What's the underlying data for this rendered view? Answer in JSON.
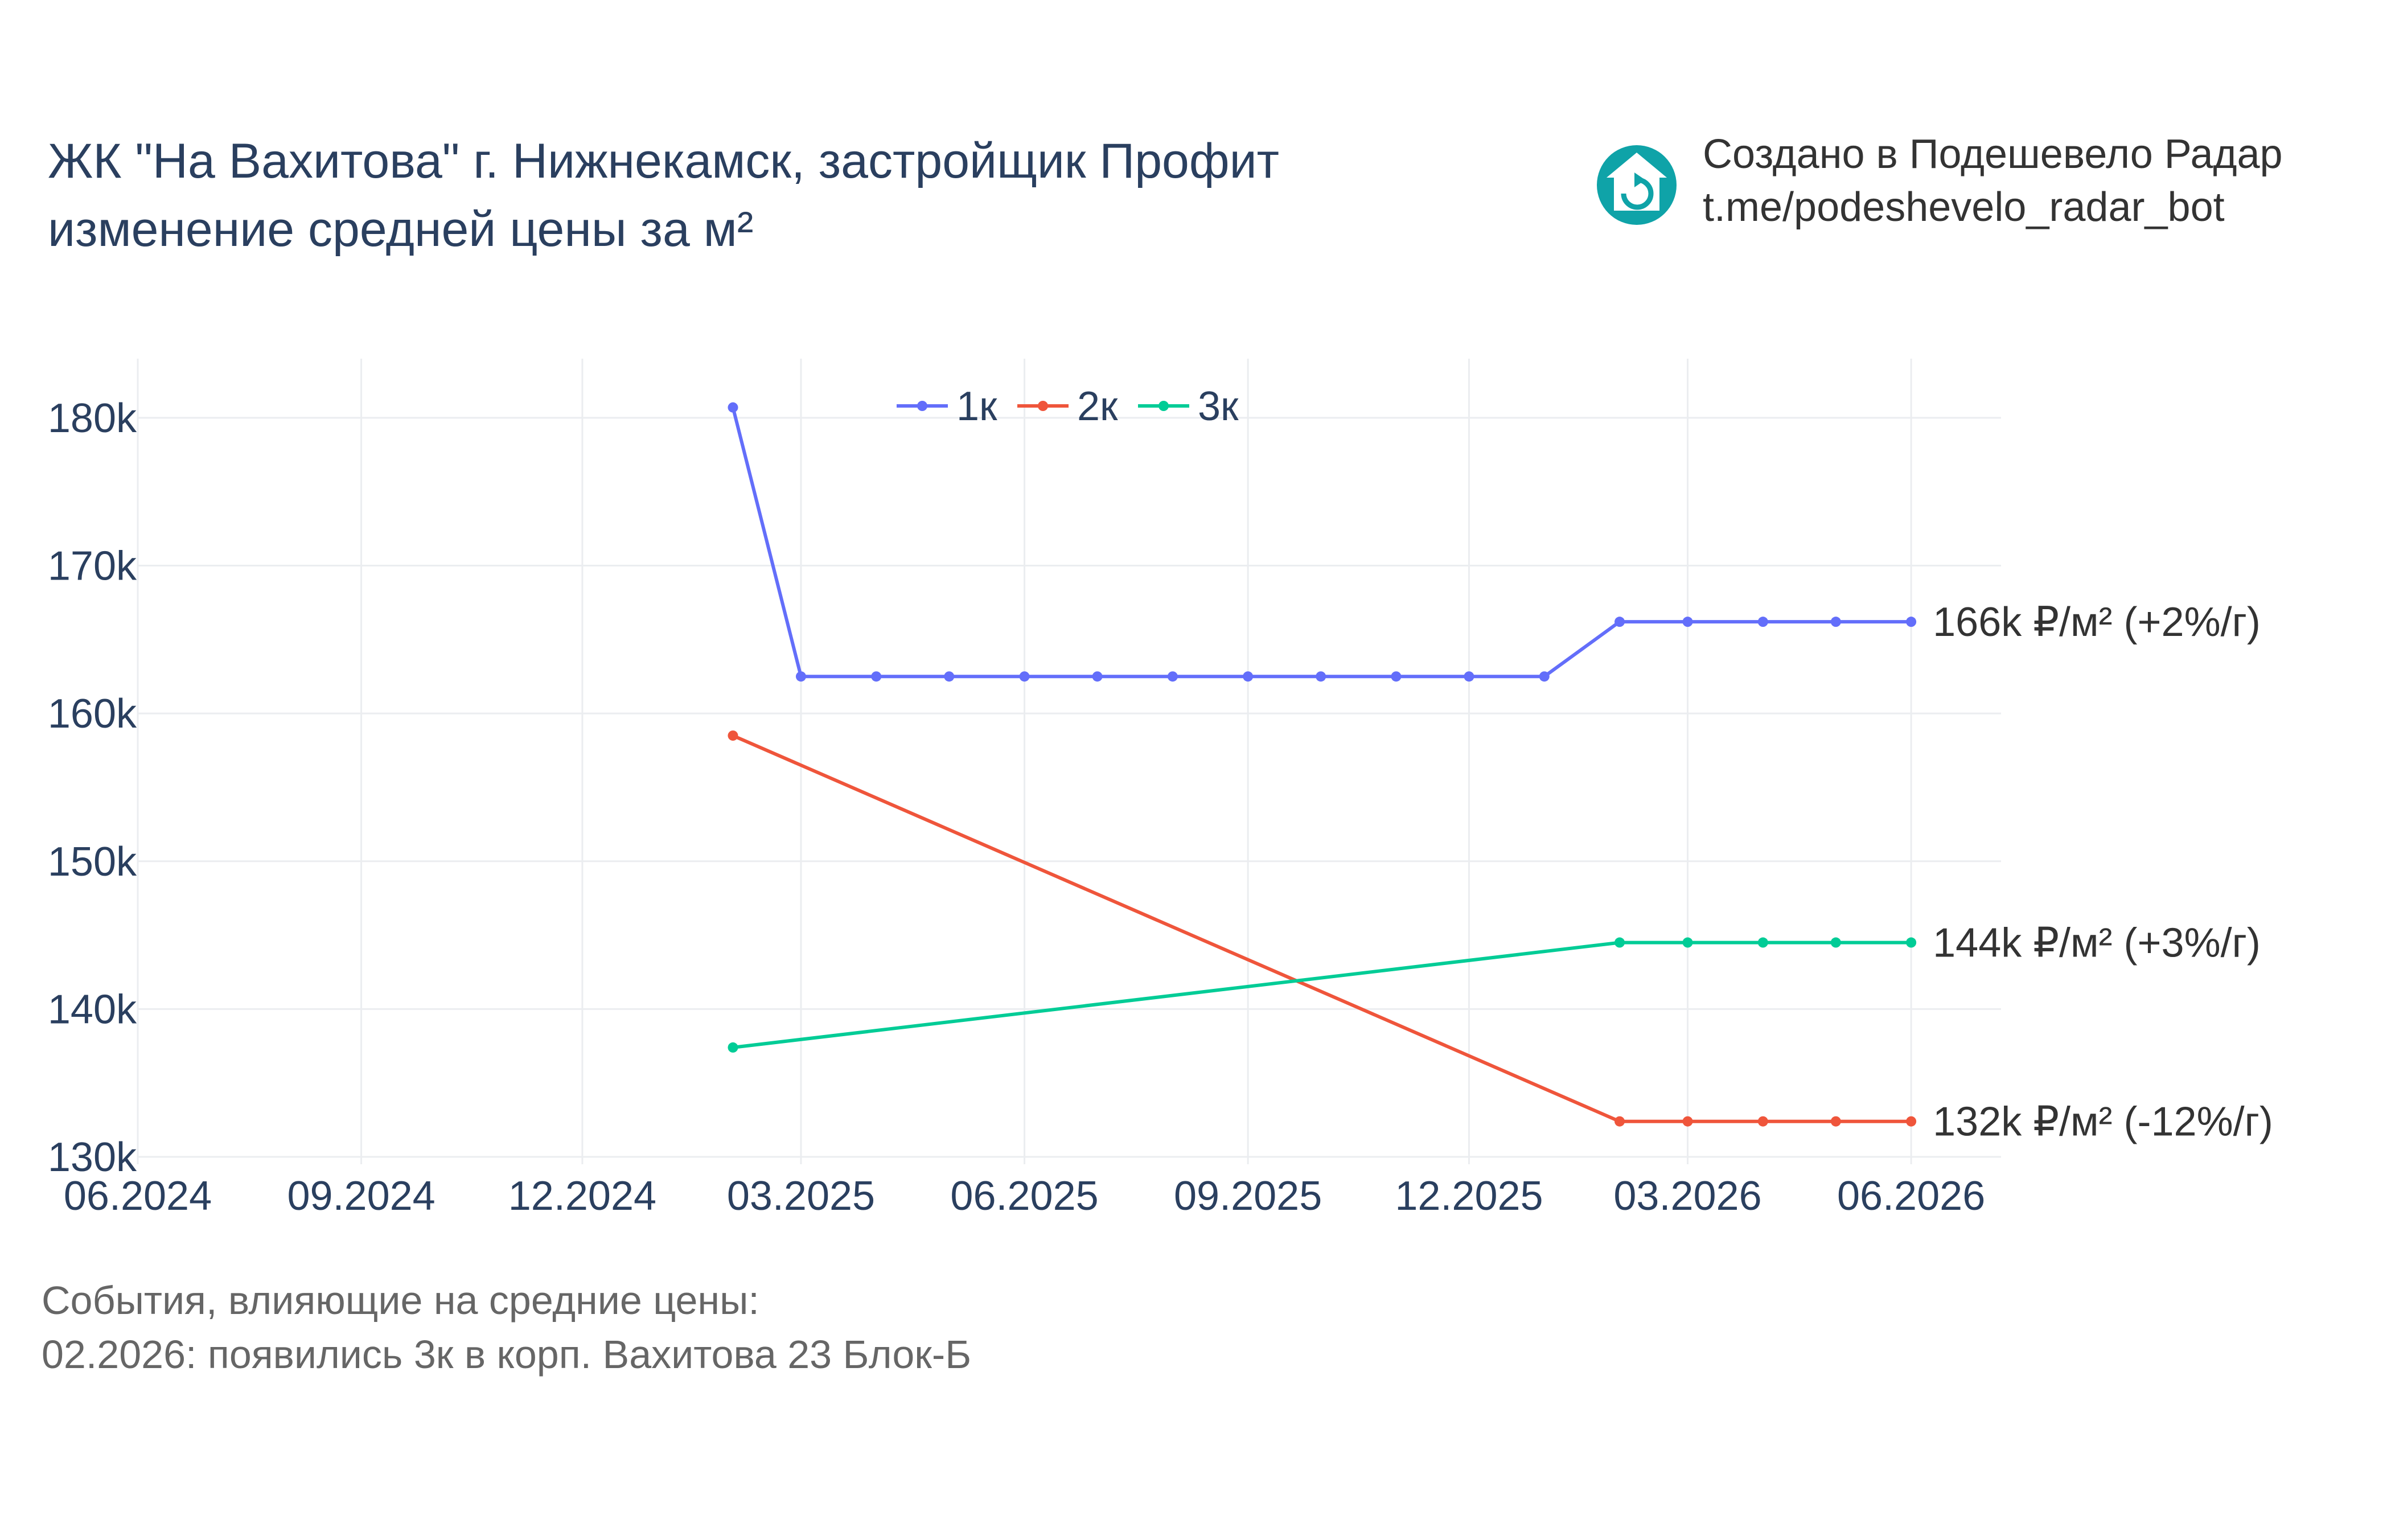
{
  "header": {
    "title_line1": "ЖК \"На Вахитова\" г. Нижнекамск, застройщик Профит",
    "title_line2": "изменение средней цены за м²"
  },
  "credit": {
    "line1": "Создано в Подешевело Радар",
    "line2": "t.me/podeshevelo_radar_bot",
    "logo_icon": "house-refresh-icon",
    "logo_color": "#0fa3a8"
  },
  "events": {
    "heading": "События, влияющие на средние цены:",
    "items": [
      "02.2026: появились 3к в корп. Вахитова 23 Блок-Б"
    ]
  },
  "chart_data": {
    "type": "line",
    "title": "",
    "xlabel": "",
    "ylabel": "",
    "x_axis": {
      "type": "date",
      "range": [
        "2024-06-01",
        "2026-07-08"
      ],
      "ticks": [
        {
          "date": "2024-06-01",
          "label": "06.2024"
        },
        {
          "date": "2024-09-01",
          "label": "09.2024"
        },
        {
          "date": "2024-12-01",
          "label": "12.2024"
        },
        {
          "date": "2025-03-01",
          "label": "03.2025"
        },
        {
          "date": "2025-06-01",
          "label": "06.2025"
        },
        {
          "date": "2025-09-01",
          "label": "09.2025"
        },
        {
          "date": "2025-12-01",
          "label": "12.2025"
        },
        {
          "date": "2026-03-01",
          "label": "03.2026"
        },
        {
          "date": "2026-06-01",
          "label": "06.2026"
        }
      ]
    },
    "y_axis": {
      "range": [
        129500,
        184000
      ],
      "ticks": [
        {
          "value": 130000,
          "label": "130k"
        },
        {
          "value": 140000,
          "label": "140k"
        },
        {
          "value": 150000,
          "label": "150k"
        },
        {
          "value": 160000,
          "label": "160k"
        },
        {
          "value": 170000,
          "label": "170k"
        },
        {
          "value": 180000,
          "label": "180k"
        }
      ]
    },
    "grid": true,
    "legend": {
      "position": "top-center",
      "orientation": "horizontal"
    },
    "series": [
      {
        "name": "1к",
        "color": "#636efa",
        "points": [
          {
            "x": "2025-02-01",
            "y": 180700
          },
          {
            "x": "2025-03-01",
            "y": 162500
          },
          {
            "x": "2025-04-01",
            "y": 162500
          },
          {
            "x": "2025-05-01",
            "y": 162500
          },
          {
            "x": "2025-06-01",
            "y": 162500
          },
          {
            "x": "2025-07-01",
            "y": 162500
          },
          {
            "x": "2025-08-01",
            "y": 162500
          },
          {
            "x": "2025-09-01",
            "y": 162500
          },
          {
            "x": "2025-10-01",
            "y": 162500
          },
          {
            "x": "2025-11-01",
            "y": 162500
          },
          {
            "x": "2025-12-01",
            "y": 162500
          },
          {
            "x": "2026-01-01",
            "y": 162500
          },
          {
            "x": "2026-02-01",
            "y": 166200
          },
          {
            "x": "2026-03-01",
            "y": 166200
          },
          {
            "x": "2026-04-01",
            "y": 166200
          },
          {
            "x": "2026-05-01",
            "y": 166200
          },
          {
            "x": "2026-06-01",
            "y": 166200
          }
        ],
        "end_label": "166k ₽/м² (+2%/г)"
      },
      {
        "name": "2к",
        "color": "#ef553b",
        "points": [
          {
            "x": "2025-02-01",
            "y": 158500
          },
          {
            "x": "2026-02-01",
            "y": 132400
          },
          {
            "x": "2026-03-01",
            "y": 132400
          },
          {
            "x": "2026-04-01",
            "y": 132400
          },
          {
            "x": "2026-05-01",
            "y": 132400
          },
          {
            "x": "2026-06-01",
            "y": 132400
          }
        ],
        "end_label": "132k ₽/м² (-12%/г)"
      },
      {
        "name": "3к",
        "color": "#00cc96",
        "points": [
          {
            "x": "2025-02-01",
            "y": 137400
          },
          {
            "x": "2026-02-01",
            "y": 144500
          },
          {
            "x": "2026-03-01",
            "y": 144500
          },
          {
            "x": "2026-04-01",
            "y": 144500
          },
          {
            "x": "2026-05-01",
            "y": 144500
          },
          {
            "x": "2026-06-01",
            "y": 144500
          }
        ],
        "end_label": "144k ₽/м² (+3%/г)"
      }
    ]
  }
}
